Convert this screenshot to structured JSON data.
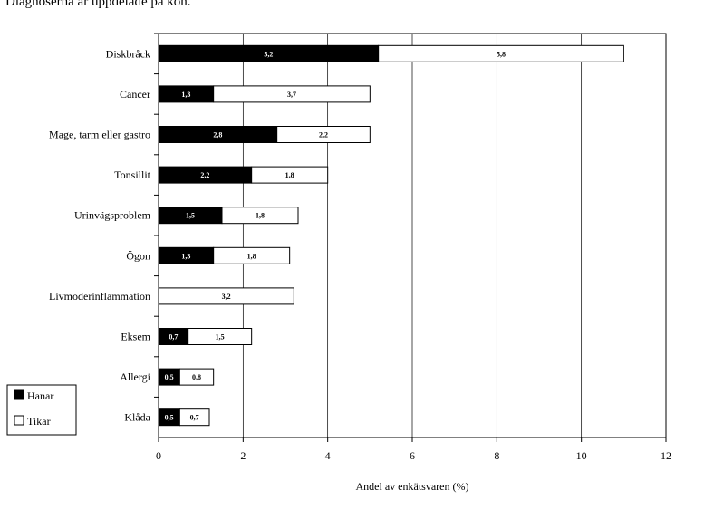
{
  "caption": "Diagnoserna är uppdelade på kön.",
  "chart_data": {
    "type": "bar",
    "orientation": "horizontal",
    "stacked": true,
    "categories": [
      "Diskbråck",
      "Cancer",
      "Mage, tarm eller gastro",
      "Tonsillit",
      "Urinvägsproblem",
      "Ögon",
      "Livmoderinflammation",
      "Eksem",
      "Allergi",
      "Klåda"
    ],
    "series": [
      {
        "name": "Hanar",
        "color": "#000000",
        "values": [
          5.2,
          1.3,
          2.8,
          2.2,
          1.5,
          1.3,
          0,
          0.7,
          0.5,
          0.5
        ],
        "labels": [
          "5,2",
          "1,3",
          "2,8",
          "2,2",
          "1,5",
          "1,3",
          "",
          "0,7",
          "0,5",
          "0,5"
        ]
      },
      {
        "name": "Tikar",
        "color": "#ffffff",
        "values": [
          5.8,
          3.7,
          2.2,
          1.8,
          1.8,
          1.8,
          3.2,
          1.5,
          0.8,
          0.7
        ],
        "labels": [
          "5,8",
          "3,7",
          "2,2",
          "1,8",
          "1,8",
          "1,8",
          "3,2",
          "1,5",
          "0,8",
          "0,7"
        ]
      }
    ],
    "xlabel": "Andel av enkätsvaren (%)",
    "ylabel": "",
    "xlim": [
      0,
      12
    ],
    "xticks": [
      "0",
      "2",
      "4",
      "6",
      "8",
      "10",
      "12"
    ],
    "grid": "vertical",
    "legend": "bottom-left"
  }
}
